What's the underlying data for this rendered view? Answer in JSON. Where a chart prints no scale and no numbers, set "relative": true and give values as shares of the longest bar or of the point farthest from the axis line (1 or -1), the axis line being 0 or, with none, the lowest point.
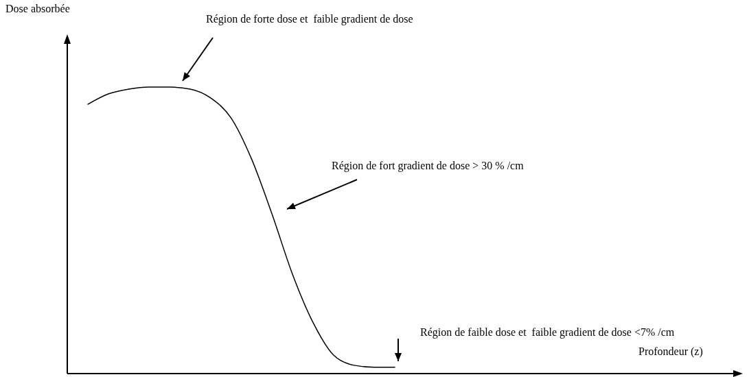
{
  "chart_data": {
    "type": "line",
    "relative": true,
    "categories": [
      null,
      null,
      null,
      null,
      null,
      null,
      null,
      null,
      null,
      null,
      null,
      null,
      null,
      null,
      null,
      null
    ],
    "series": [
      {
        "color": "#000000",
        "values": [
          0.94,
          0.976,
          0.993,
          1,
          1,
          0.993,
          0.962,
          0.892,
          0.749,
          0.557,
          0.347,
          0.179,
          0.065,
          0.029,
          0.022,
          0.022
        ]
      }
    ],
    "marker": "none",
    "line_style": "solid",
    "annotations": [
      "Région de forte dose et  faible gradient de dose",
      "Région de fort gradient de dose > 30 % /cm",
      "Région de faible dose et  faible gradient de dose <7% /cm",
      "Dose absorbée",
      "Profondeur (z)"
    ]
  }
}
